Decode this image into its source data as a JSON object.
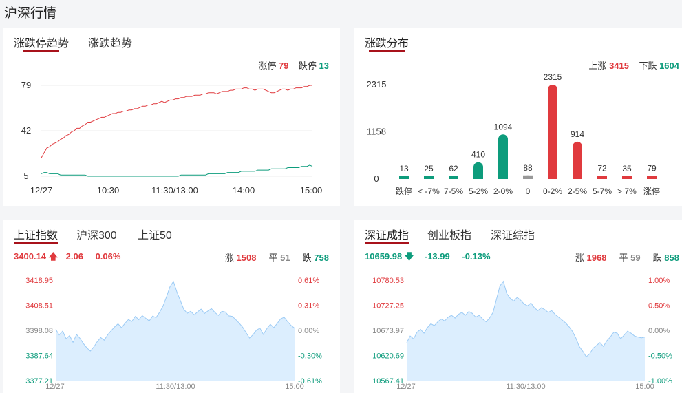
{
  "page": {
    "title": "沪深行情"
  },
  "colors": {
    "up": "#e03a3e",
    "down": "#0d9c7c",
    "flat": "#999999",
    "accent": "#a8121b",
    "area": "#dceefe",
    "areaLine": "#9ccbf5"
  },
  "limit_panel": {
    "tabs": [
      {
        "label": "涨跌停趋势",
        "active": true
      },
      {
        "label": "涨跌趋势",
        "active": false
      }
    ],
    "legend": {
      "up_label": "涨停",
      "up_value": "79",
      "down_label": "跌停",
      "down_value": "13"
    }
  },
  "dist_panel": {
    "tabs": [
      {
        "label": "涨跌分布",
        "active": true
      }
    ],
    "legend": {
      "up_label": "上涨",
      "up_value": "3415",
      "down_label": "下跌",
      "down_value": "1604"
    }
  },
  "sh_panel": {
    "tabs": [
      {
        "label": "上证指数",
        "active": true
      },
      {
        "label": "沪深300",
        "active": false
      },
      {
        "label": "上证50",
        "active": false
      }
    ],
    "quote": {
      "price": "3400.14",
      "arrow": "up",
      "change": "2.06",
      "pct": "0.06%"
    },
    "breadth": {
      "up_label": "涨",
      "up_value": "1508",
      "flat_label": "平",
      "flat_value": "51",
      "down_label": "跌",
      "down_value": "758"
    }
  },
  "sz_panel": {
    "tabs": [
      {
        "label": "深证成指",
        "active": true
      },
      {
        "label": "创业板指",
        "active": false
      },
      {
        "label": "深证综指",
        "active": false
      }
    ],
    "quote": {
      "price": "10659.98",
      "arrow": "down",
      "change": "-13.99",
      "pct": "-0.13%"
    },
    "breadth": {
      "up_label": "涨",
      "up_value": "1968",
      "flat_label": "平",
      "flat_value": "59",
      "down_label": "跌",
      "down_value": "858"
    }
  },
  "chart_data": [
    {
      "id": "limit-trend",
      "type": "line",
      "x_ticks": [
        "12/27",
        "10:30",
        "11:30/13:00",
        "14:00",
        "15:00"
      ],
      "y_ticks": [
        "79",
        "42",
        "5"
      ],
      "ylim": [
        5,
        79
      ],
      "series": [
        {
          "values": [
            20,
            24,
            28,
            29,
            31,
            32,
            33,
            35,
            36,
            38,
            39,
            41,
            42,
            44,
            44,
            46,
            47,
            49,
            49,
            50,
            51,
            52,
            53,
            53,
            54,
            55,
            56,
            56,
            57,
            57,
            58,
            58,
            59,
            59,
            60,
            60,
            61,
            62,
            62,
            63,
            63,
            64,
            64,
            65,
            66,
            65,
            66,
            67,
            67,
            68,
            68,
            69,
            69,
            70,
            70,
            70,
            71,
            71,
            71,
            72,
            72,
            73,
            73,
            73,
            72,
            73,
            74,
            74,
            74,
            75,
            75,
            76,
            76,
            76,
            77,
            77,
            76,
            76,
            75,
            76,
            76,
            76,
            75,
            74,
            73,
            73,
            74,
            75,
            76,
            76,
            75,
            76,
            76,
            77,
            77,
            77,
            78,
            78,
            79,
            79
          ]
        },
        {
          "values": [
            7,
            8,
            8,
            7,
            7,
            7,
            7,
            6,
            6,
            6,
            6,
            6,
            6,
            6,
            6,
            6,
            6,
            5,
            5,
            5,
            5,
            5,
            5,
            5,
            5,
            5,
            5,
            5,
            5,
            5,
            5,
            5,
            5,
            5,
            5,
            5,
            5,
            5,
            5,
            5,
            5,
            5,
            5,
            5,
            5,
            5,
            5,
            5,
            5,
            5,
            5,
            6,
            6,
            6,
            6,
            6,
            6,
            6,
            6,
            6,
            6,
            7,
            7,
            7,
            7,
            7,
            7,
            7,
            8,
            8,
            8,
            8,
            8,
            9,
            9,
            9,
            9,
            9,
            9,
            10,
            10,
            10,
            10,
            10,
            11,
            11,
            11,
            11,
            11,
            11,
            12,
            12,
            12,
            12,
            12,
            13,
            13,
            13,
            14,
            13
          ]
        }
      ]
    },
    {
      "id": "distribution",
      "type": "bar",
      "categories": [
        "跌停",
        "< -7%",
        "7-5%",
        "5-2%",
        "2-0%",
        "0",
        "0-2%",
        "2-5%",
        "5-7%",
        "> 7%",
        "涨停"
      ],
      "values": [
        13,
        25,
        62,
        410,
        1094,
        88,
        2315,
        914,
        72,
        35,
        79
      ],
      "directions": [
        "down",
        "down",
        "down",
        "down",
        "down",
        "flat",
        "up",
        "up",
        "up",
        "up",
        "up"
      ],
      "y_ticks": [
        "2315",
        "1158",
        "0"
      ],
      "ylim": [
        0,
        2315
      ]
    },
    {
      "id": "sh-index",
      "type": "area",
      "x_ticks": [
        "12/27",
        "11:30/13:00",
        "15:00"
      ],
      "y_ticks_left": [
        "3418.95",
        "3408.51",
        "3398.08",
        "3387.64",
        "3377.21"
      ],
      "y_ticks_right": [
        "0.61%",
        "0.31%",
        "0.00%",
        "-0.30%",
        "-0.61%"
      ],
      "ylim": [
        3377.21,
        3418.95
      ],
      "values": [
        3398.5,
        3396.2,
        3397.8,
        3394.6,
        3395.9,
        3393.1,
        3396.4,
        3394.8,
        3392.6,
        3390.8,
        3389.5,
        3391.2,
        3393.4,
        3395.1,
        3394.0,
        3396.2,
        3397.9,
        3399.5,
        3400.8,
        3399.2,
        3401.0,
        3402.6,
        3401.8,
        3403.9,
        3402.5,
        3404.2,
        3403.1,
        3402.0,
        3404.0,
        3403.4,
        3405.6,
        3408.2,
        3412.0,
        3416.2,
        3418.4,
        3414.1,
        3410.5,
        3406.8,
        3405.2,
        3406.0,
        3404.5,
        3405.8,
        3406.9,
        3405.1,
        3406.2,
        3407.1,
        3405.5,
        3404.3,
        3406.0,
        3405.7,
        3404.1,
        3403.9,
        3402.6,
        3401.1,
        3399.4,
        3397.1,
        3394.9,
        3396.3,
        3398.2,
        3399.0,
        3396.4,
        3398.8,
        3400.6,
        3399.2,
        3401.0,
        3402.9,
        3403.5,
        3401.7,
        3400.1,
        3399.0
      ]
    },
    {
      "id": "sz-index",
      "type": "area",
      "x_ticks": [
        "12/27",
        "11:30/13:00",
        "15:00"
      ],
      "y_ticks_left": [
        "10780.53",
        "10727.25",
        "10673.97",
        "10620.69",
        "10567.41"
      ],
      "y_ticks_right": [
        "1.00%",
        "0.50%",
        "0.00%",
        "-0.50%",
        "-1.00%"
      ],
      "ylim": [
        10567.41,
        10780.53
      ],
      "values": [
        10648,
        10662,
        10656,
        10670,
        10676,
        10668,
        10680,
        10688,
        10684,
        10692,
        10698,
        10694,
        10702,
        10706,
        10700,
        10708,
        10712,
        10706,
        10714,
        10710,
        10702,
        10706,
        10698,
        10692,
        10700,
        10712,
        10740,
        10768,
        10778,
        10752,
        10742,
        10736,
        10744,
        10738,
        10730,
        10726,
        10732,
        10722,
        10716,
        10722,
        10718,
        10712,
        10716,
        10708,
        10702,
        10696,
        10690,
        10682,
        10672,
        10658,
        10640,
        10630,
        10618,
        10624,
        10636,
        10642,
        10648,
        10640,
        10652,
        10660,
        10670,
        10668,
        10656,
        10664,
        10672,
        10668,
        10662,
        10660,
        10658,
        10660
      ]
    }
  ]
}
